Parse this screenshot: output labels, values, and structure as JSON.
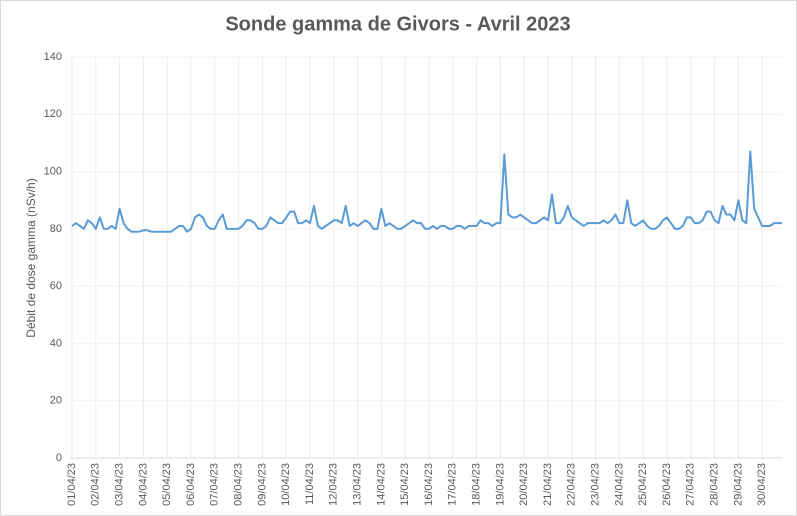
{
  "chart_data": {
    "type": "line",
    "title": "Sonde gamma de Givors - Avril 2023",
    "y_label": "Débit de dose gamma (nSv/h)",
    "categories": [
      "01/04/23",
      null,
      null,
      null,
      null,
      null,
      "02/04/23",
      null,
      null,
      null,
      null,
      null,
      "03/04/23",
      null,
      null,
      null,
      null,
      null,
      "04/04/23",
      null,
      null,
      null,
      null,
      null,
      "05/04/23",
      null,
      null,
      null,
      null,
      null,
      "06/04/23",
      null,
      null,
      null,
      null,
      null,
      "07/04/23",
      null,
      null,
      null,
      null,
      null,
      "08/04/23",
      null,
      null,
      null,
      null,
      null,
      "09/04/23",
      null,
      null,
      null,
      null,
      null,
      "10/04/23",
      null,
      null,
      null,
      null,
      null,
      "11/04/23",
      null,
      null,
      null,
      null,
      null,
      "12/04/23",
      null,
      null,
      null,
      null,
      null,
      "13/04/23",
      null,
      null,
      null,
      null,
      null,
      "14/04/23",
      null,
      null,
      null,
      null,
      null,
      "15/04/23",
      null,
      null,
      null,
      null,
      null,
      "16/04/23",
      null,
      null,
      null,
      null,
      null,
      "17/04/23",
      null,
      null,
      null,
      null,
      null,
      "18/04/23",
      null,
      null,
      null,
      null,
      null,
      "19/04/23",
      null,
      null,
      null,
      null,
      null,
      "20/04/23",
      null,
      null,
      null,
      null,
      null,
      "21/04/23",
      null,
      null,
      null,
      null,
      null,
      "22/04/23",
      null,
      null,
      null,
      null,
      null,
      "23/04/23",
      null,
      null,
      null,
      null,
      null,
      "24/04/23",
      null,
      null,
      null,
      null,
      null,
      "25/04/23",
      null,
      null,
      null,
      null,
      null,
      "26/04/23",
      null,
      null,
      null,
      null,
      null,
      "27/04/23",
      null,
      null,
      null,
      null,
      null,
      "28/04/23",
      null,
      null,
      null,
      null,
      null,
      "29/04/23",
      null,
      null,
      null,
      null,
      null,
      "30/04/23",
      null,
      null,
      null,
      null,
      null
    ],
    "series": [
      {
        "color": "#5b9bd5",
        "values": [
          81,
          82,
          81,
          80,
          83,
          82,
          80,
          84,
          80,
          80,
          81,
          80,
          87,
          82,
          80,
          79,
          79,
          79,
          79.5,
          79.5,
          79,
          79,
          79,
          79,
          79,
          79,
          80,
          81,
          81,
          79,
          80,
          84,
          85,
          84,
          81,
          80,
          80,
          83,
          85,
          80,
          80,
          80,
          80,
          81,
          83,
          83,
          82,
          80,
          80,
          81,
          84,
          83,
          82,
          82,
          84,
          86,
          86,
          82,
          82,
          83,
          82,
          88,
          81,
          80,
          81,
          82,
          83,
          83,
          82,
          88,
          81,
          82,
          81,
          82,
          83,
          82,
          80,
          80,
          87,
          81,
          82,
          81,
          80,
          80,
          81,
          82,
          83,
          82,
          82,
          80,
          80,
          81,
          80,
          81,
          81,
          80,
          80,
          81,
          81,
          80,
          81,
          81,
          81,
          83,
          82,
          82,
          81,
          82,
          82,
          106,
          85,
          84,
          84,
          85,
          84,
          83,
          82,
          82,
          83,
          84,
          83,
          92,
          82,
          82,
          84,
          88,
          84,
          83,
          82,
          81,
          82,
          82,
          82,
          82,
          83,
          82,
          83,
          85,
          82,
          82,
          90,
          82,
          81,
          82,
          83,
          81,
          80,
          80,
          81,
          83,
          84,
          82,
          80,
          80,
          81,
          84,
          84,
          82,
          82,
          83,
          86,
          86,
          83,
          82,
          88,
          85,
          85,
          83,
          90,
          83,
          82,
          107,
          87,
          84,
          81,
          81,
          81,
          82,
          82,
          82
        ]
      }
    ],
    "ylim": [
      0,
      140
    ],
    "yticks": [
      0,
      20,
      40,
      60,
      80,
      100,
      120,
      140
    ],
    "grid": true
  }
}
